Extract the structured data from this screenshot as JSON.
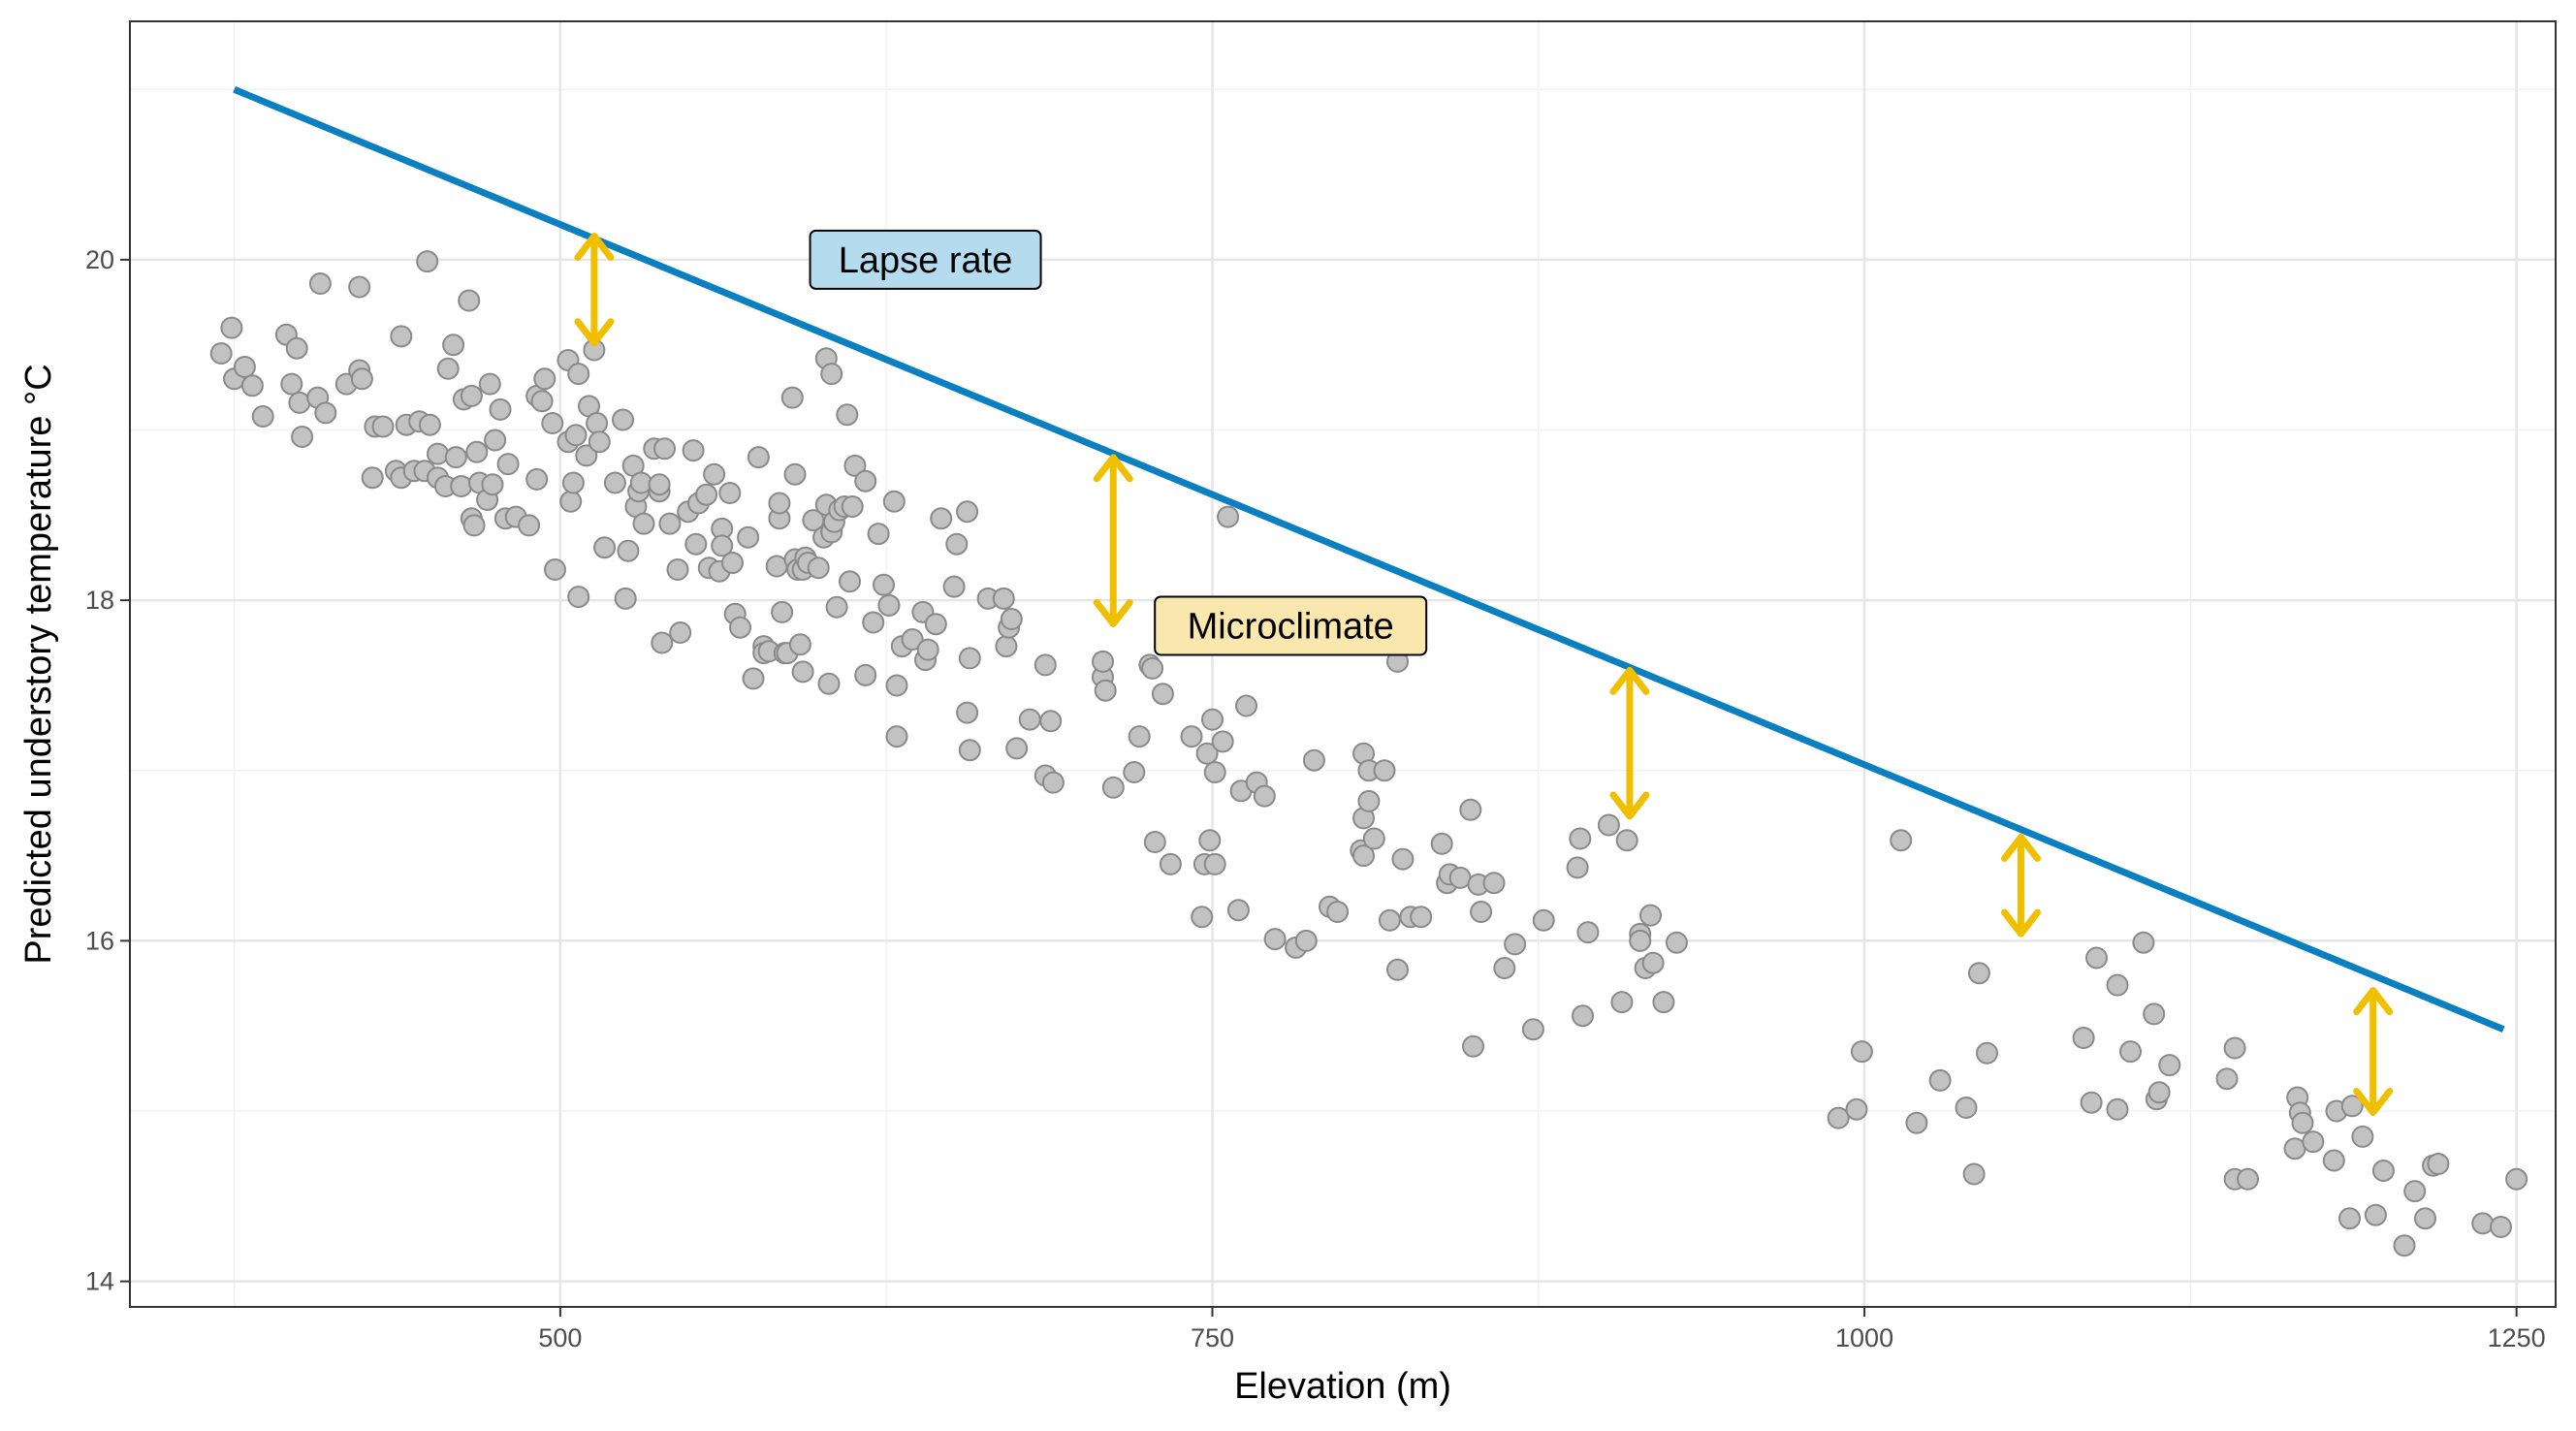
{
  "chart_data": {
    "type": "scatter",
    "title": "",
    "xlabel": "Elevation (m)",
    "ylabel": "Predicted understory temperature °C",
    "xlim": [
      335,
      1265
    ],
    "ylim": [
      13.85,
      21.4
    ],
    "x_ticks": [
      500,
      750,
      1000,
      1250
    ],
    "y_ticks": [
      14,
      16,
      18,
      20
    ],
    "x_minor": [
      375,
      625,
      875,
      1125
    ],
    "y_minor": [
      15,
      17,
      19,
      21
    ],
    "grid": true,
    "legend": "none",
    "colors": {
      "points_fill": "#c2c2c2",
      "points_stroke": "#8a8a8a",
      "lapse_line": "#0a7fc2",
      "arrows": "#f0bf00",
      "lapse_box": "#b5dbef",
      "microclimate_box": "#f9e7ad"
    },
    "lapse_line": {
      "x": [
        375,
        1245
      ],
      "y": [
        21.0,
        15.48
      ]
    },
    "annotations": [
      {
        "text": "Lapse rate",
        "x": 640,
        "y": 20.0,
        "style": "lapse_box"
      },
      {
        "text": "Microclimate",
        "x": 780,
        "y": 17.85,
        "style": "microclimate_box"
      }
    ],
    "arrows": [
      {
        "x": 513,
        "y_from": 19.5,
        "y_to": 20.15
      },
      {
        "x": 712,
        "y_from": 17.85,
        "y_to": 18.85
      },
      {
        "x": 910,
        "y_from": 16.72,
        "y_to": 17.6
      },
      {
        "x": 1060,
        "y_from": 16.03,
        "y_to": 16.62
      },
      {
        "x": 1195,
        "y_from": 14.98,
        "y_to": 15.72
      }
    ],
    "points": [
      [
        370,
        19.45
      ],
      [
        374,
        19.6
      ],
      [
        375,
        19.3
      ],
      [
        379,
        19.37
      ],
      [
        382,
        19.26
      ],
      [
        386,
        19.08
      ],
      [
        395,
        19.56
      ],
      [
        397,
        19.27
      ],
      [
        399,
        19.48
      ],
      [
        400,
        19.16
      ],
      [
        401,
        18.96
      ],
      [
        407,
        19.19
      ],
      [
        408,
        19.86
      ],
      [
        410,
        19.1
      ],
      [
        418,
        19.27
      ],
      [
        423,
        19.84
      ],
      [
        423,
        19.35
      ],
      [
        424,
        19.3
      ],
      [
        428,
        18.72
      ],
      [
        429,
        19.02
      ],
      [
        432,
        19.02
      ],
      [
        437,
        18.76
      ],
      [
        439,
        19.55
      ],
      [
        439,
        18.72
      ],
      [
        441,
        19.03
      ],
      [
        444,
        18.76
      ],
      [
        446,
        19.05
      ],
      [
        448,
        18.76
      ],
      [
        449,
        19.99
      ],
      [
        450,
        19.03
      ],
      [
        453,
        18.72
      ],
      [
        453,
        18.86
      ],
      [
        456,
        18.67
      ],
      [
        457,
        19.36
      ],
      [
        459,
        19.5
      ],
      [
        460,
        18.84
      ],
      [
        462,
        18.67
      ],
      [
        463,
        19.18
      ],
      [
        465,
        19.76
      ],
      [
        466,
        19.2
      ],
      [
        466,
        18.48
      ],
      [
        467,
        18.44
      ],
      [
        468,
        18.87
      ],
      [
        469,
        18.69
      ],
      [
        472,
        18.59
      ],
      [
        473,
        19.27
      ],
      [
        474,
        18.68
      ],
      [
        475,
        18.94
      ],
      [
        477,
        19.12
      ],
      [
        479,
        18.48
      ],
      [
        480,
        18.8
      ],
      [
        483,
        18.49
      ],
      [
        488,
        18.44
      ],
      [
        491,
        19.2
      ],
      [
        491,
        18.71
      ],
      [
        493,
        19.17
      ],
      [
        494,
        19.3
      ],
      [
        497,
        19.04
      ],
      [
        498,
        18.18
      ],
      [
        503,
        18.93
      ],
      [
        503,
        19.41
      ],
      [
        504,
        18.58
      ],
      [
        505,
        18.69
      ],
      [
        506,
        18.97
      ],
      [
        507,
        19.33
      ],
      [
        507,
        18.02
      ],
      [
        510,
        18.85
      ],
      [
        511,
        19.14
      ],
      [
        513,
        19.47
      ],
      [
        514,
        19.04
      ],
      [
        515,
        18.93
      ],
      [
        517,
        18.31
      ],
      [
        521,
        18.69
      ],
      [
        524,
        19.06
      ],
      [
        525,
        18.01
      ],
      [
        526,
        18.29
      ],
      [
        528,
        18.79
      ],
      [
        529,
        18.55
      ],
      [
        530,
        18.64
      ],
      [
        531,
        18.69
      ],
      [
        532,
        18.45
      ],
      [
        536,
        18.89
      ],
      [
        538,
        18.64
      ],
      [
        538,
        18.68
      ],
      [
        539,
        17.75
      ],
      [
        540,
        18.89
      ],
      [
        542,
        18.45
      ],
      [
        545,
        18.18
      ],
      [
        546,
        17.81
      ],
      [
        549,
        18.52
      ],
      [
        551,
        18.88
      ],
      [
        552,
        18.33
      ],
      [
        553,
        18.57
      ],
      [
        556,
        18.62
      ],
      [
        557,
        18.19
      ],
      [
        559,
        18.74
      ],
      [
        561,
        18.17
      ],
      [
        562,
        18.42
      ],
      [
        562,
        18.32
      ],
      [
        565,
        18.63
      ],
      [
        566,
        18.22
      ],
      [
        567,
        17.92
      ],
      [
        569,
        17.84
      ],
      [
        572,
        18.37
      ],
      [
        574,
        17.54
      ],
      [
        576,
        18.84
      ],
      [
        578,
        17.73
      ],
      [
        578,
        17.69
      ],
      [
        580,
        17.7
      ],
      [
        583,
        18.2
      ],
      [
        584,
        18.48
      ],
      [
        584,
        18.57
      ],
      [
        585,
        17.93
      ],
      [
        586,
        17.69
      ],
      [
        587,
        17.69
      ],
      [
        589,
        19.19
      ],
      [
        590,
        18.74
      ],
      [
        590,
        18.24
      ],
      [
        591,
        18.18
      ],
      [
        592,
        17.74
      ],
      [
        593,
        17.58
      ],
      [
        593,
        18.18
      ],
      [
        594,
        18.25
      ],
      [
        595,
        18.22
      ],
      [
        597,
        18.47
      ],
      [
        599,
        18.19
      ],
      [
        601,
        18.37
      ],
      [
        602,
        18.56
      ],
      [
        602,
        19.42
      ],
      [
        603,
        17.51
      ],
      [
        604,
        18.4
      ],
      [
        604,
        19.33
      ],
      [
        605,
        18.46
      ],
      [
        606,
        17.96
      ],
      [
        607,
        18.53
      ],
      [
        609,
        18.55
      ],
      [
        610,
        19.09
      ],
      [
        611,
        18.11
      ],
      [
        612,
        18.55
      ],
      [
        613,
        18.79
      ],
      [
        617,
        18.7
      ],
      [
        617,
        17.56
      ],
      [
        620,
        17.87
      ],
      [
        622,
        18.39
      ],
      [
        624,
        18.09
      ],
      [
        626,
        17.97
      ],
      [
        626,
        17.97
      ],
      [
        628,
        18.58
      ],
      [
        629,
        17.5
      ],
      [
        629,
        17.2
      ],
      [
        631,
        17.73
      ],
      [
        635,
        17.77
      ],
      [
        639,
        17.93
      ],
      [
        640,
        17.65
      ],
      [
        641,
        17.71
      ],
      [
        644,
        17.86
      ],
      [
        646,
        18.48
      ],
      [
        651,
        18.08
      ],
      [
        652,
        18.33
      ],
      [
        656,
        18.52
      ],
      [
        656,
        17.34
      ],
      [
        657,
        17.12
      ],
      [
        657,
        17.66
      ],
      [
        664,
        18.01
      ],
      [
        670,
        18.01
      ],
      [
        671,
        17.73
      ],
      [
        672,
        17.84
      ],
      [
        673,
        17.89
      ],
      [
        675,
        17.13
      ],
      [
        680,
        17.3
      ],
      [
        686,
        16.97
      ],
      [
        686,
        17.62
      ],
      [
        688,
        17.29
      ],
      [
        689,
        16.93
      ],
      [
        708,
        17.55
      ],
      [
        708,
        17.64
      ],
      [
        709,
        17.47
      ],
      [
        712,
        16.9
      ],
      [
        720,
        16.99
      ],
      [
        722,
        17.2
      ],
      [
        726,
        17.62
      ],
      [
        727,
        17.6
      ],
      [
        728,
        16.58
      ],
      [
        731,
        17.45
      ],
      [
        734,
        16.45
      ],
      [
        742,
        17.2
      ],
      [
        746,
        16.14
      ],
      [
        747,
        16.45
      ],
      [
        748,
        17.1
      ],
      [
        749,
        16.59
      ],
      [
        750,
        17.3
      ],
      [
        751,
        16.99
      ],
      [
        751,
        16.45
      ],
      [
        754,
        17.17
      ],
      [
        756,
        18.49
      ],
      [
        760,
        16.18
      ],
      [
        761,
        16.88
      ],
      [
        763,
        17.38
      ],
      [
        767,
        16.93
      ],
      [
        770,
        16.85
      ],
      [
        774,
        16.01
      ],
      [
        782,
        15.96
      ],
      [
        786,
        16.0
      ],
      [
        789,
        17.06
      ],
      [
        795,
        16.2
      ],
      [
        798,
        16.17
      ],
      [
        807,
        16.53
      ],
      [
        808,
        16.72
      ],
      [
        808,
        16.5
      ],
      [
        808,
        17.1
      ],
      [
        810,
        17.0
      ],
      [
        810,
        16.82
      ],
      [
        812,
        16.6
      ],
      [
        816,
        17.0
      ],
      [
        818,
        16.12
      ],
      [
        821,
        17.64
      ],
      [
        821,
        15.83
      ],
      [
        823,
        16.48
      ],
      [
        826,
        16.14
      ],
      [
        830,
        16.14
      ],
      [
        838,
        16.57
      ],
      [
        840,
        16.34
      ],
      [
        841,
        16.39
      ],
      [
        845,
        16.37
      ],
      [
        849,
        16.77
      ],
      [
        850,
        15.38
      ],
      [
        852,
        16.33
      ],
      [
        853,
        16.17
      ],
      [
        858,
        16.34
      ],
      [
        862,
        15.84
      ],
      [
        866,
        15.98
      ],
      [
        873,
        15.48
      ],
      [
        877,
        16.12
      ],
      [
        890,
        16.43
      ],
      [
        891,
        16.6
      ],
      [
        892,
        15.56
      ],
      [
        894,
        16.05
      ],
      [
        902,
        16.68
      ],
      [
        907,
        15.64
      ],
      [
        909,
        16.59
      ],
      [
        914,
        16.04
      ],
      [
        914,
        16.0
      ],
      [
        916,
        15.84
      ],
      [
        918,
        16.15
      ],
      [
        919,
        15.87
      ],
      [
        923,
        15.64
      ],
      [
        928,
        15.99
      ],
      [
        990,
        14.96
      ],
      [
        997,
        15.01
      ],
      [
        999,
        15.35
      ],
      [
        1014,
        16.59
      ],
      [
        1020,
        14.93
      ],
      [
        1029,
        15.18
      ],
      [
        1039,
        15.02
      ],
      [
        1042,
        14.63
      ],
      [
        1044,
        15.81
      ],
      [
        1047,
        15.34
      ],
      [
        1084,
        15.43
      ],
      [
        1087,
        15.05
      ],
      [
        1089,
        15.9
      ],
      [
        1097,
        15.74
      ],
      [
        1097,
        15.01
      ],
      [
        1102,
        15.35
      ],
      [
        1107,
        15.99
      ],
      [
        1111,
        15.57
      ],
      [
        1112,
        15.07
      ],
      [
        1113,
        15.11
      ],
      [
        1117,
        15.27
      ],
      [
        1139,
        15.19
      ],
      [
        1142,
        15.37
      ],
      [
        1142,
        14.6
      ],
      [
        1147,
        14.6
      ],
      [
        1165,
        14.78
      ],
      [
        1166,
        15.08
      ],
      [
        1167,
        14.99
      ],
      [
        1168,
        14.93
      ],
      [
        1172,
        14.82
      ],
      [
        1180,
        14.71
      ],
      [
        1181,
        15.0
      ],
      [
        1186,
        14.37
      ],
      [
        1187,
        15.03
      ],
      [
        1191,
        14.85
      ],
      [
        1196,
        14.39
      ],
      [
        1199,
        14.65
      ],
      [
        1207,
        14.21
      ],
      [
        1211,
        14.53
      ],
      [
        1215,
        14.37
      ],
      [
        1218,
        14.68
      ],
      [
        1220,
        14.69
      ],
      [
        1237,
        14.34
      ],
      [
        1244,
        14.32
      ],
      [
        1250,
        14.6
      ]
    ]
  }
}
